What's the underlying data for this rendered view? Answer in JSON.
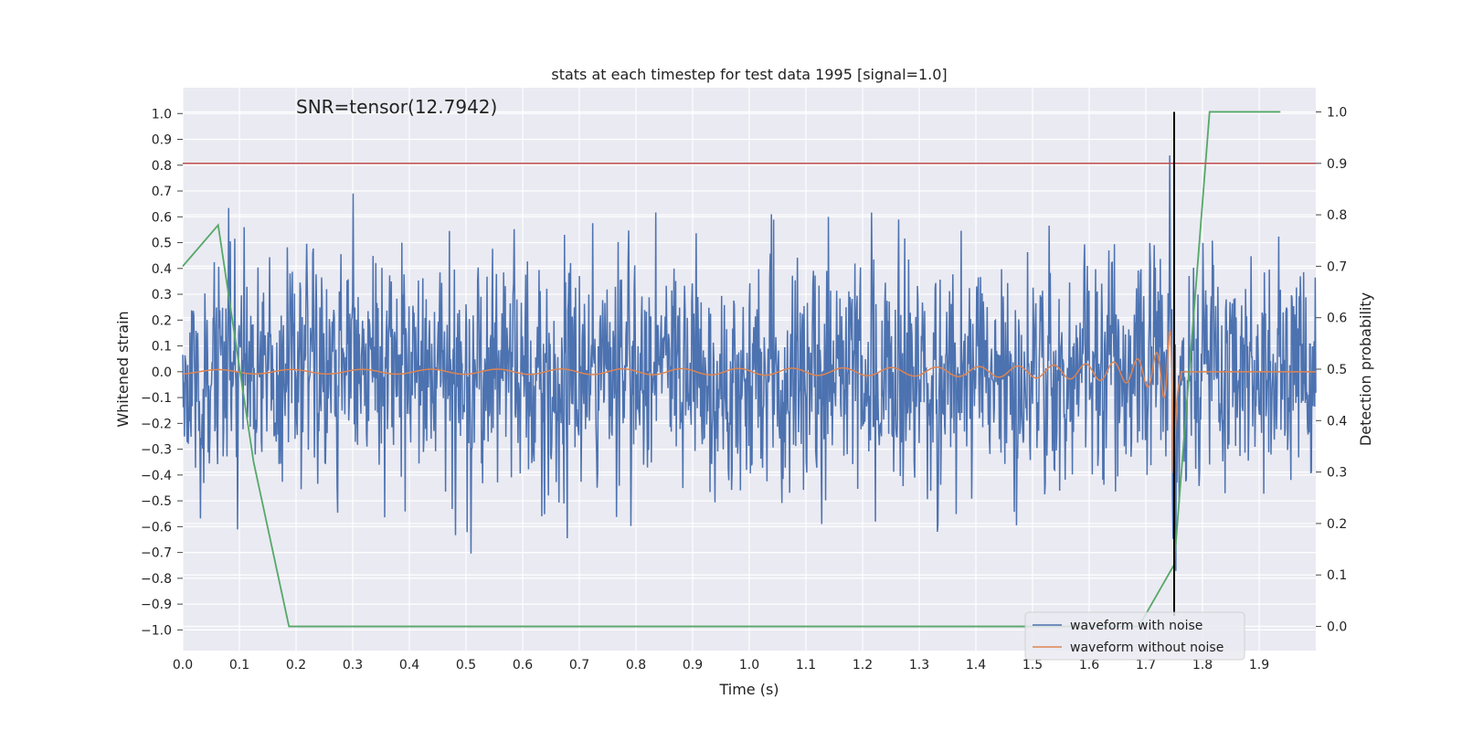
{
  "chart_data": {
    "type": "line",
    "title": "stats at each timestep for test data 1995 [signal=1.0]",
    "xlabel": "Time (s)",
    "ylabel": "Whitened strain",
    "y2label": "Detection probability",
    "annotation": "SNR=tensor(12.7942)",
    "xlim": [
      0.0,
      2.0
    ],
    "ylim": [
      -1.08,
      1.1
    ],
    "y2lim": [
      -0.047,
      1.047
    ],
    "x_ticks": [
      "0.0",
      "0.1",
      "0.2",
      "0.3",
      "0.4",
      "0.5",
      "0.6",
      "0.7",
      "0.8",
      "0.9",
      "1.0",
      "1.1",
      "1.2",
      "1.3",
      "1.4",
      "1.5",
      "1.6",
      "1.7",
      "1.8",
      "1.9"
    ],
    "y_ticks": [
      "1.0",
      "0.9",
      "0.8",
      "0.7",
      "0.6",
      "0.5",
      "0.4",
      "0.3",
      "0.2",
      "0.1",
      "0.0",
      "−0.1",
      "−0.2",
      "−0.3",
      "−0.4",
      "−0.5",
      "−0.6",
      "−0.7",
      "−0.8",
      "−0.9",
      "−1.0"
    ],
    "y2_ticks": [
      "1.0",
      "0.9",
      "0.8",
      "0.7",
      "0.6",
      "0.5",
      "0.4",
      "0.3",
      "0.2",
      "0.1",
      "0.0"
    ],
    "threshold": {
      "axis": "y2",
      "value": 0.9,
      "color": "#c44e52"
    },
    "event_line": {
      "x": 1.75,
      "color": "#000000"
    },
    "grid": true,
    "background": "#eaeaf2",
    "legend_position": "lower right",
    "series": [
      {
        "name": "waveform with noise",
        "color": "#4c72b0",
        "axis": "y",
        "kind": "noise",
        "std": 0.22
      },
      {
        "name": "waveform without noise",
        "color": "#dd8452",
        "axis": "y",
        "kind": "chirp",
        "merger_time": 1.75
      },
      {
        "name": "",
        "color": "#55a868",
        "axis": "y2",
        "kind": "probability",
        "x": [
          0.0,
          0.0625,
          0.125,
          0.1875,
          0.25,
          0.3125,
          0.375,
          0.4375,
          0.5,
          0.5625,
          0.625,
          0.6875,
          0.75,
          0.8125,
          0.875,
          0.9375,
          1.0,
          1.0625,
          1.125,
          1.1875,
          1.25,
          1.3125,
          1.375,
          1.4375,
          1.5,
          1.5625,
          1.625,
          1.6875,
          1.75,
          1.8125,
          1.875,
          1.9375
        ],
        "values": [
          0.7,
          0.78,
          0.32,
          0.0,
          0.0,
          0.0,
          0.0,
          0.0,
          0.0,
          0.0,
          0.0,
          0.0,
          0.0,
          0.0,
          0.0,
          0.0,
          0.0,
          0.0,
          0.0,
          0.0,
          0.0,
          0.0,
          0.0,
          0.0,
          0.0,
          0.0,
          0.0,
          0.0,
          0.12,
          1.0,
          1.0,
          1.0
        ]
      }
    ],
    "legend": [
      "waveform with noise",
      "waveform without noise"
    ]
  }
}
